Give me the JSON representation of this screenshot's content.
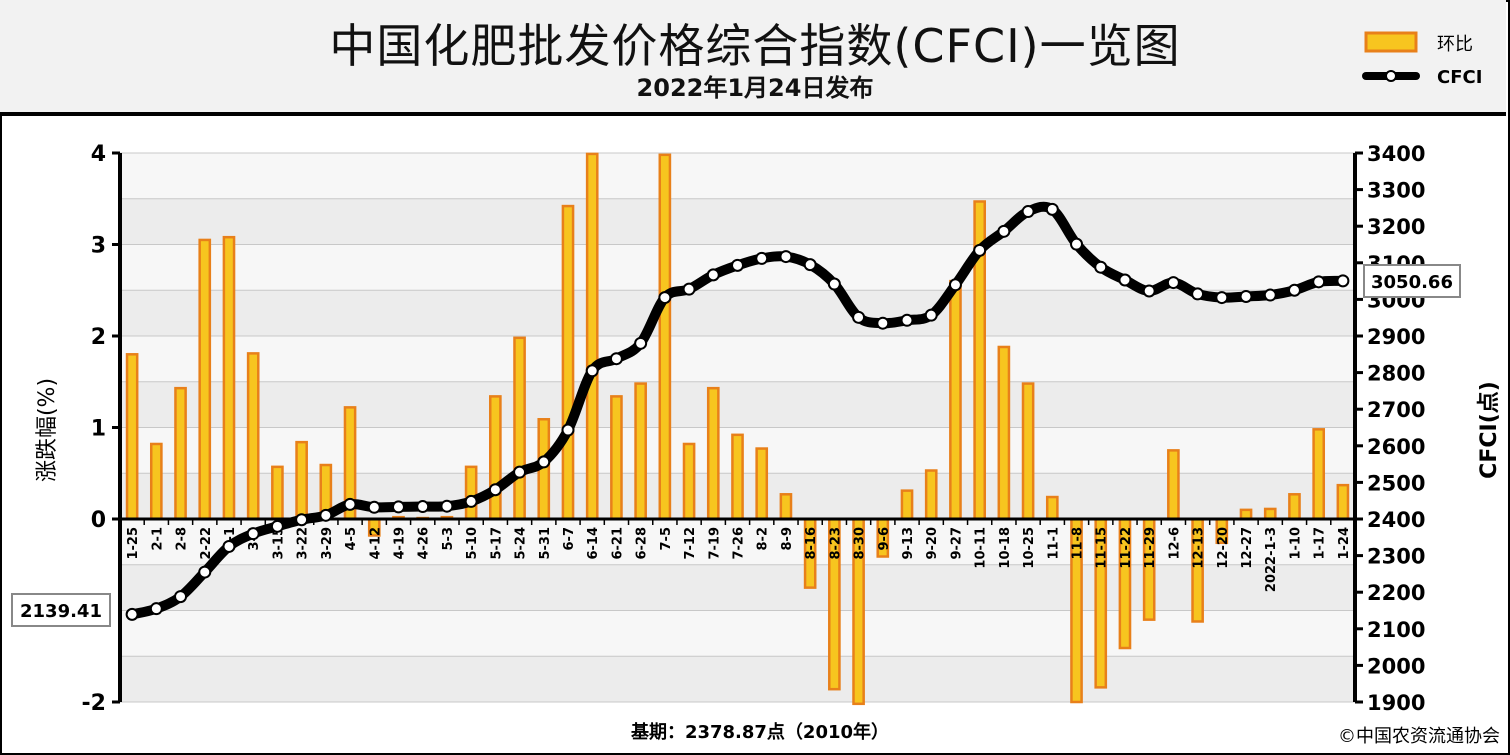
{
  "title": "中国化肥批发价格综合指数(CFCI)一览图",
  "subtitle": "2022年1月24日发布",
  "legend": {
    "bar_label": "环比",
    "line_label": "CFCI"
  },
  "footer": {
    "base_period": "基期：2378.87点（2010年）",
    "copyright": "©中国农资流通协会"
  },
  "callouts": {
    "start": "2139.41",
    "end": "3050.66"
  },
  "colors": {
    "bar_fill": "#f7c51f",
    "bar_edge": "#e8801a",
    "line": "#000000",
    "marker_fill": "#ffffff"
  },
  "chart_data": {
    "type": "bar+line",
    "categories": [
      "1-25",
      "2-1",
      "2-8",
      "2-22",
      "3-1",
      "3-8",
      "3-15",
      "3-22",
      "3-29",
      "4-5",
      "4-12",
      "4-19",
      "4-26",
      "5-3",
      "5-10",
      "5-17",
      "5-24",
      "5-31",
      "6-7",
      "6-14",
      "6-21",
      "6-28",
      "7-5",
      "7-12",
      "7-19",
      "7-26",
      "8-2",
      "8-9",
      "8-16",
      "8-23",
      "8-30",
      "9-6",
      "9-13",
      "9-20",
      "9-27",
      "10-11",
      "10-18",
      "10-25",
      "11-1",
      "11-8",
      "11-15",
      "11-22",
      "11-29",
      "12-6",
      "12-13",
      "12-20",
      "12-27",
      "2022-1-3",
      "1-10",
      "1-17",
      "1-24"
    ],
    "series": [
      {
        "name": "环比",
        "type": "bar",
        "axis": "left",
        "values": [
          1.8,
          0.82,
          1.43,
          3.05,
          3.08,
          1.81,
          0.57,
          0.84,
          0.59,
          1.22,
          -0.18,
          0.02,
          0.01,
          0.02,
          0.57,
          1.34,
          1.98,
          1.09,
          3.42,
          3.99,
          1.34,
          1.48,
          3.98,
          0.82,
          1.43,
          0.92,
          0.77,
          0.27,
          -0.75,
          -1.86,
          -2.02,
          -0.41,
          0.31,
          0.53,
          2.6,
          3.47,
          1.88,
          1.48,
          0.24,
          -2.0,
          -1.84,
          -1.41,
          -1.1,
          0.75,
          -1.12,
          -0.26,
          0.1,
          0.11,
          0.27,
          0.98,
          0.37
        ]
      },
      {
        "name": "CFCI",
        "type": "line",
        "axis": "right",
        "values": [
          2139.41,
          2155,
          2188,
          2255,
          2325,
          2360,
          2380,
          2398,
          2410,
          2440,
          2432,
          2433,
          2434,
          2435,
          2448,
          2480,
          2528,
          2556,
          2643,
          2805,
          2838,
          2880,
          3005,
          3028,
          3067,
          3093,
          3112,
          3117,
          3095,
          3042,
          2951,
          2935,
          2943,
          2957,
          3040,
          3134,
          3186,
          3240,
          3246,
          3151,
          3088,
          3053,
          3023,
          3046,
          3015,
          3005,
          3008,
          3012,
          3025,
          3048,
          3050.66
        ]
      }
    ],
    "ylabel": "涨跌幅(%)",
    "y2label": "CFCI(点)",
    "ylim": [
      -2,
      4
    ],
    "y2lim": [
      1900,
      3400
    ],
    "yticks": [
      -2,
      0,
      1,
      2,
      3,
      4
    ],
    "y2ticks": [
      1900,
      2000,
      2100,
      2200,
      2300,
      2400,
      2500,
      2600,
      2700,
      2800,
      2900,
      3000,
      3100,
      3200,
      3300,
      3400
    ],
    "grid": true,
    "legend_position": "top-right"
  }
}
